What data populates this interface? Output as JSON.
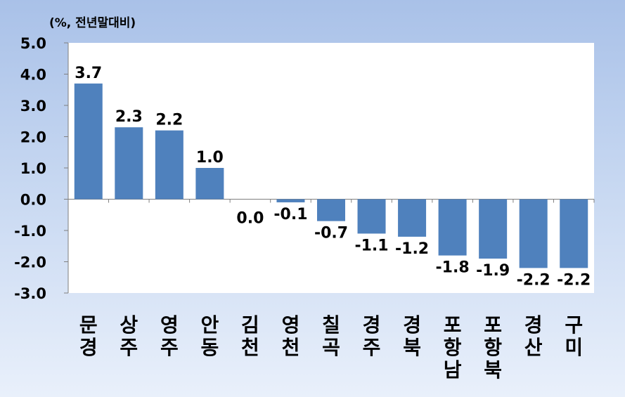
{
  "chart_data": {
    "type": "bar",
    "unit_label": "(%, 전년말대비)",
    "categories": [
      "문경",
      "상주",
      "영주",
      "안동",
      "김천",
      "영천",
      "칠곡",
      "경주",
      "경북",
      "포항남",
      "포항북",
      "경산",
      "구미"
    ],
    "values": [
      3.7,
      2.3,
      2.2,
      1.0,
      0.0,
      -0.1,
      -0.7,
      -1.1,
      -1.2,
      -1.8,
      -1.9,
      -2.2,
      -2.2
    ],
    "value_labels": [
      "3.7",
      "2.3",
      "2.2",
      "1.0",
      "0.0",
      "-0.1",
      "-0.7",
      "-1.1",
      "-1.2",
      "-1.8",
      "-1.9",
      "-2.2",
      "-2.2"
    ],
    "ylim": [
      -3.0,
      5.0
    ],
    "yticks": [
      "5.0",
      "4.0",
      "3.0",
      "2.0",
      "1.0",
      "0.0",
      "-1.0",
      "-2.0",
      "-3.0"
    ],
    "ytick_values": [
      5,
      4,
      3,
      2,
      1,
      0,
      -1,
      -2,
      -3
    ],
    "bar_color": "#4f81bd",
    "grid": false,
    "legend": "none"
  }
}
